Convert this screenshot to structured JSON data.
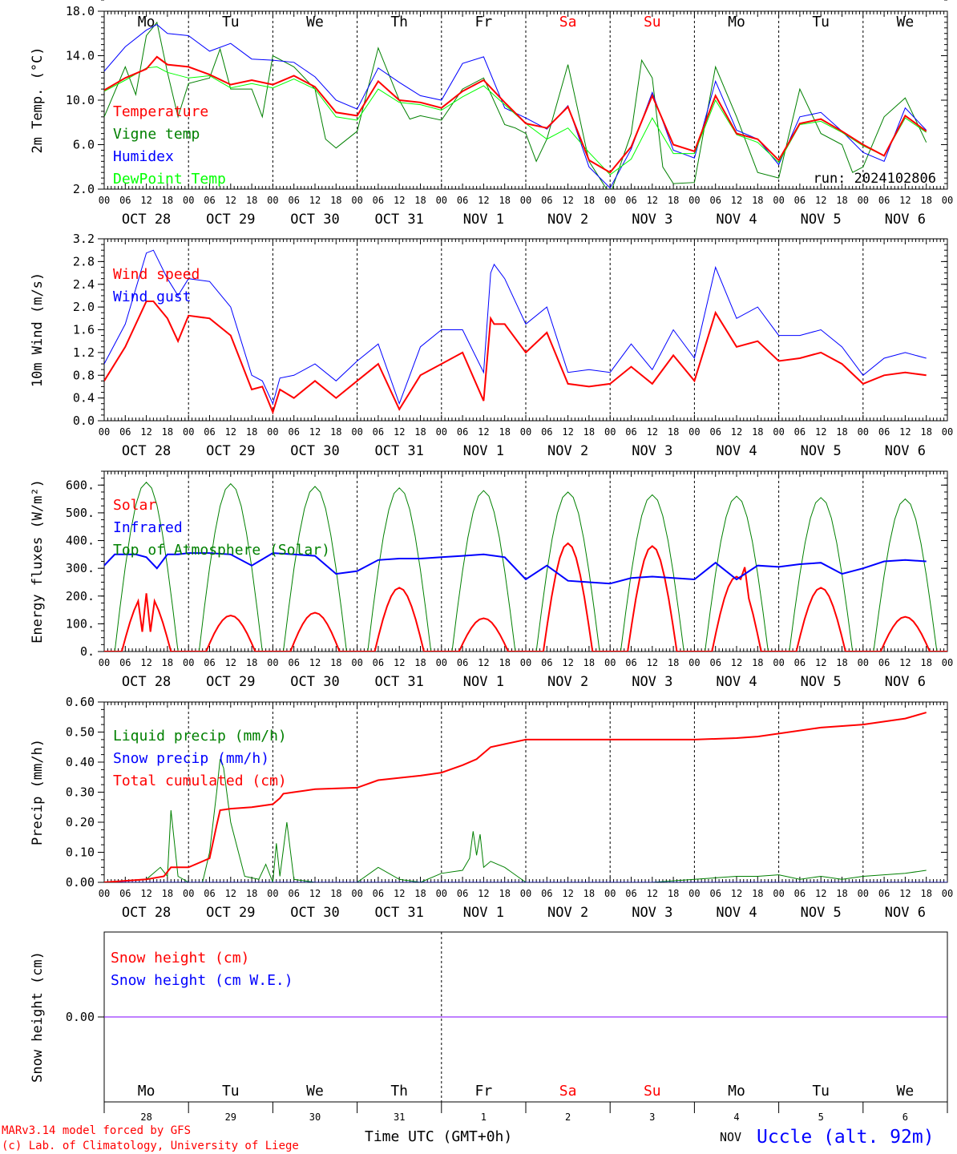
{
  "days": {
    "weekday_labels": [
      "Mo",
      "Tu",
      "We",
      "Th",
      "Fr",
      "Sa",
      "Su",
      "Mo",
      "Tu",
      "We"
    ],
    "weekday_colors": [
      "#000000",
      "#000000",
      "#000000",
      "#000000",
      "#000000",
      "#ff0000",
      "#ff0000",
      "#000000",
      "#000000",
      "#000000"
    ],
    "date_labels": [
      "OCT 28",
      "OCT 29",
      "OCT 30",
      "OCT 31",
      "NOV  1",
      "NOV  2",
      "NOV  3",
      "NOV  4",
      "NOV  5",
      "NOV  6"
    ],
    "hour_labels": [
      "00",
      "06",
      "12",
      "18"
    ],
    "hour_label_end": "00",
    "bottom_day_numbers": [
      "28",
      "29",
      "30",
      "31",
      "1",
      "2",
      "3",
      "4",
      "5",
      "6"
    ],
    "bottom_month": "NOV"
  },
  "colors": {
    "temperature": "#ff0000",
    "vigne": "#008000",
    "humidex": "#0000ff",
    "dewpoint": "#00ff00",
    "snow_line": "#7f00ff"
  },
  "footer": {
    "model_line": "MARv3.14 model forced by GFS",
    "copyright_line": "(c) Lab. of Climatology, University of Liege",
    "time_axis": "Time UTC (GMT+0h)",
    "station": "Uccle (alt. 92m)"
  },
  "chart_data": [
    {
      "type": "line",
      "ylabel": "2m Temp. (°C)",
      "ylim": [
        2.0,
        18.0
      ],
      "yticks": [
        "2.0",
        "6.0",
        "10.0",
        "14.0",
        "18.0"
      ],
      "run_label": "run: 2024102806",
      "x_unit": "hours from OCT 28 00 UTC",
      "series": [
        {
          "name": "Temperature",
          "color": "#ff0000",
          "width": 2,
          "x": [
            0,
            6,
            12,
            15,
            18,
            24,
            30,
            36,
            42,
            48,
            54,
            60,
            66,
            72,
            78,
            84,
            90,
            96,
            102,
            108,
            114,
            120,
            126,
            132,
            138,
            144,
            150,
            156,
            162,
            168,
            174,
            180,
            186,
            192,
            198,
            204,
            210,
            216,
            222,
            228,
            234
          ],
          "y": [
            10.9,
            12.0,
            12.8,
            13.9,
            13.2,
            13.0,
            12.3,
            11.4,
            11.8,
            11.4,
            12.2,
            11.2,
            8.9,
            8.6,
            11.7,
            10.0,
            9.8,
            9.3,
            10.8,
            11.8,
            9.8,
            7.9,
            7.5,
            9.4,
            4.6,
            3.5,
            5.8,
            10.4,
            6.0,
            5.4,
            10.4,
            7.0,
            6.5,
            4.6,
            7.9,
            8.3,
            7.2,
            6.0,
            5.0,
            8.6,
            7.2
          ]
        },
        {
          "name": "Vigne temp",
          "color": "#008000",
          "width": 1,
          "x": [
            0,
            6,
            9,
            12,
            15,
            18,
            21,
            24,
            30,
            33,
            36,
            42,
            45,
            48,
            54,
            60,
            63,
            66,
            72,
            78,
            84,
            87,
            90,
            96,
            102,
            108,
            114,
            117,
            120,
            123,
            126,
            132,
            138,
            144,
            150,
            153,
            156,
            159,
            162,
            168,
            174,
            180,
            186,
            192,
            198,
            204,
            210,
            213,
            216,
            222,
            228,
            234
          ],
          "y": [
            8.5,
            13.0,
            10.5,
            15.8,
            17.0,
            12.5,
            8.5,
            11.5,
            12.0,
            14.6,
            11.0,
            11.0,
            8.5,
            14.0,
            13.0,
            11.0,
            6.5,
            5.7,
            7.2,
            14.7,
            10.0,
            8.3,
            8.6,
            8.2,
            11.0,
            12.0,
            7.8,
            7.5,
            7.0,
            4.5,
            6.5,
            13.2,
            4.5,
            1.5,
            7.0,
            13.6,
            12.0,
            4.0,
            2.5,
            2.6,
            13.0,
            8.5,
            3.5,
            3.0,
            11.0,
            7.0,
            6.0,
            3.5,
            4.0,
            8.5,
            10.2,
            6.2
          ]
        },
        {
          "name": "Humidex",
          "color": "#0000ff",
          "width": 1,
          "x": [
            0,
            6,
            12,
            15,
            18,
            24,
            30,
            36,
            42,
            48,
            54,
            60,
            66,
            72,
            78,
            84,
            90,
            96,
            102,
            108,
            114,
            120,
            126,
            132,
            138,
            144,
            150,
            156,
            162,
            168,
            174,
            180,
            186,
            192,
            198,
            204,
            210,
            216,
            222,
            228,
            234
          ],
          "y": [
            12.6,
            14.8,
            16.3,
            16.8,
            16.0,
            15.8,
            14.4,
            15.1,
            13.7,
            13.6,
            13.4,
            12.1,
            10.0,
            9.2,
            12.9,
            11.6,
            10.4,
            10.0,
            13.3,
            13.9,
            9.3,
            8.4,
            7.4,
            9.5,
            4.0,
            2.1,
            5.6,
            10.7,
            5.5,
            4.8,
            11.7,
            7.3,
            6.5,
            4.2,
            8.5,
            8.9,
            7.2,
            5.3,
            4.5,
            9.3,
            7.3
          ]
        },
        {
          "name": "DewPoint Temp",
          "color": "#00ff00",
          "width": 1,
          "x": [
            0,
            6,
            12,
            15,
            18,
            24,
            30,
            36,
            42,
            48,
            54,
            60,
            66,
            72,
            78,
            84,
            90,
            96,
            102,
            108,
            114,
            120,
            126,
            132,
            138,
            144,
            150,
            156,
            162,
            168,
            174,
            180,
            186,
            192,
            198,
            204,
            210,
            216,
            222,
            228,
            234
          ],
          "y": [
            10.8,
            11.8,
            12.9,
            13.0,
            12.5,
            12.0,
            12.2,
            11.1,
            11.5,
            11.1,
            11.9,
            11.0,
            8.5,
            8.2,
            11.0,
            9.8,
            9.6,
            9.1,
            10.3,
            11.3,
            9.6,
            7.9,
            6.5,
            7.5,
            5.3,
            3.3,
            4.7,
            8.4,
            5.2,
            5.2,
            10.0,
            6.9,
            6.2,
            4.4,
            7.8,
            8.1,
            7.1,
            5.9,
            5.0,
            8.4,
            7.1
          ]
        }
      ]
    },
    {
      "type": "line",
      "ylabel": "10m Wind (m/s)",
      "ylim": [
        0.0,
        3.2
      ],
      "yticks": [
        "0.0",
        "0.4",
        "0.8",
        "1.2",
        "1.6",
        "2.0",
        "2.4",
        "2.8",
        "3.2"
      ],
      "x_unit": "hours from OCT 28 00 UTC",
      "series": [
        {
          "name": "Wind speed",
          "color": "#ff0000",
          "width": 2,
          "x": [
            0,
            6,
            12,
            14,
            18,
            21,
            24,
            30,
            36,
            42,
            45,
            48,
            50,
            54,
            60,
            66,
            72,
            78,
            84,
            90,
            96,
            102,
            108,
            110,
            111,
            114,
            120,
            126,
            132,
            138,
            144,
            150,
            156,
            162,
            168,
            174,
            180,
            186,
            192,
            198,
            204,
            210,
            216,
            222,
            228,
            234
          ],
          "y": [
            0.7,
            1.3,
            2.1,
            2.1,
            1.8,
            1.4,
            1.85,
            1.8,
            1.5,
            0.55,
            0.6,
            0.15,
            0.55,
            0.4,
            0.7,
            0.4,
            0.7,
            1.0,
            0.2,
            0.8,
            1.0,
            1.2,
            0.35,
            1.8,
            1.7,
            1.7,
            1.2,
            1.55,
            0.65,
            0.6,
            0.65,
            0.95,
            0.65,
            1.15,
            0.7,
            1.9,
            1.3,
            1.4,
            1.05,
            1.1,
            1.2,
            1.0,
            0.65,
            0.8,
            0.85,
            0.8
          ]
        },
        {
          "name": "Wind gust",
          "color": "#0000ff",
          "width": 1,
          "x": [
            0,
            6,
            12,
            14,
            18,
            21,
            24,
            30,
            36,
            42,
            45,
            48,
            50,
            54,
            60,
            66,
            72,
            78,
            84,
            90,
            96,
            102,
            108,
            110,
            111,
            114,
            120,
            126,
            132,
            138,
            144,
            150,
            156,
            162,
            168,
            174,
            180,
            186,
            192,
            198,
            204,
            210,
            216,
            222,
            228,
            234
          ],
          "y": [
            1.0,
            1.7,
            2.95,
            3.0,
            2.5,
            2.2,
            2.5,
            2.45,
            2.0,
            0.8,
            0.7,
            0.3,
            0.75,
            0.8,
            1.0,
            0.7,
            1.05,
            1.35,
            0.3,
            1.3,
            1.6,
            1.6,
            0.85,
            2.6,
            2.75,
            2.5,
            1.7,
            2.0,
            0.85,
            0.9,
            0.85,
            1.35,
            0.9,
            1.6,
            1.1,
            2.7,
            1.8,
            2.0,
            1.5,
            1.5,
            1.6,
            1.3,
            0.8,
            1.1,
            1.2,
            1.1
          ]
        }
      ]
    },
    {
      "type": "line",
      "ylabel": "Energy fluxes (W/m²)",
      "ylim": [
        0,
        650
      ],
      "yticks": [
        "0.",
        "100.",
        "200.",
        "300.",
        "400.",
        "500.",
        "600."
      ],
      "x_unit": "hours from OCT 28 00 UTC",
      "solar_peaks": [
        210,
        130,
        140,
        230,
        120,
        390,
        380,
        270,
        230,
        125
      ],
      "toa_peaks": [
        610,
        605,
        595,
        590,
        580,
        575,
        565,
        560,
        555,
        550
      ],
      "series": [
        {
          "name": "Solar",
          "color": "#ff0000",
          "width": 2
        },
        {
          "name": "Infrared",
          "color": "#0000ff",
          "width": 2,
          "x": [
            0,
            3,
            9,
            12,
            15,
            18,
            21,
            24,
            30,
            36,
            42,
            48,
            54,
            60,
            66,
            72,
            78,
            84,
            90,
            96,
            102,
            108,
            114,
            117,
            120,
            126,
            132,
            138,
            144,
            150,
            156,
            162,
            168,
            174,
            180,
            186,
            192,
            198,
            204,
            210,
            216,
            222,
            228,
            234
          ],
          "y": [
            310,
            350,
            350,
            340,
            300,
            350,
            350,
            355,
            355,
            350,
            310,
            355,
            350,
            345,
            280,
            290,
            330,
            335,
            335,
            340,
            345,
            350,
            340,
            300,
            260,
            310,
            255,
            250,
            245,
            265,
            270,
            265,
            260,
            320,
            260,
            310,
            305,
            315,
            320,
            280,
            300,
            325,
            330,
            325
          ]
        },
        {
          "name": "Top of Atmosphere (Solar)",
          "color": "#008000",
          "width": 1
        }
      ]
    },
    {
      "type": "line",
      "ylabel": "Precip (mm/h)",
      "ylim": [
        0.0,
        0.6
      ],
      "yticks": [
        "0.00",
        "0.10",
        "0.20",
        "0.30",
        "0.40",
        "0.50",
        "0.60"
      ],
      "x_unit": "hours from OCT 28 00 UTC",
      "series": [
        {
          "name": "Liquid precip (mm/h)",
          "color": "#008000",
          "width": 1,
          "x": [
            0,
            12,
            16,
            18,
            19,
            21,
            24,
            28,
            30,
            32,
            33,
            34,
            36,
            40,
            44,
            46,
            48,
            49,
            50,
            52,
            54,
            60,
            72,
            78,
            84,
            90,
            96,
            102,
            104,
            105,
            106,
            107,
            108,
            110,
            114,
            120,
            132,
            144,
            156,
            168,
            180,
            186,
            192,
            198,
            204,
            210,
            216,
            222,
            228,
            234
          ],
          "y": [
            0.0,
            0.01,
            0.05,
            0.02,
            0.24,
            0.02,
            0.0,
            0.0,
            0.1,
            0.3,
            0.41,
            0.38,
            0.2,
            0.02,
            0.01,
            0.06,
            0.0,
            0.13,
            0.02,
            0.2,
            0.01,
            0.0,
            0.0,
            0.05,
            0.01,
            0.0,
            0.03,
            0.04,
            0.08,
            0.17,
            0.09,
            0.16,
            0.05,
            0.07,
            0.05,
            0.0,
            0.0,
            0.0,
            0.0,
            0.01,
            0.02,
            0.02,
            0.025,
            0.01,
            0.02,
            0.01,
            0.02,
            0.025,
            0.03,
            0.04
          ]
        },
        {
          "name": "Snow precip (mm/h)",
          "color": "#0000ff",
          "width": 1,
          "x": [
            0,
            240
          ],
          "y": [
            0,
            0
          ]
        },
        {
          "name": "Total cumulated (cm)",
          "color": "#ff0000",
          "width": 2,
          "x": [
            0,
            12,
            17,
            19,
            24,
            30,
            32,
            33,
            36,
            42,
            48,
            50,
            51,
            54,
            60,
            72,
            78,
            90,
            96,
            102,
            106,
            108,
            110,
            114,
            120,
            132,
            144,
            168,
            180,
            186,
            204,
            210,
            216,
            222,
            228,
            234
          ],
          "y": [
            0.0,
            0.01,
            0.02,
            0.05,
            0.05,
            0.08,
            0.19,
            0.24,
            0.245,
            0.25,
            0.26,
            0.28,
            0.295,
            0.3,
            0.31,
            0.315,
            0.34,
            0.355,
            0.365,
            0.39,
            0.41,
            0.43,
            0.45,
            0.46,
            0.475,
            0.475,
            0.475,
            0.475,
            0.48,
            0.485,
            0.515,
            0.52,
            0.525,
            0.535,
            0.545,
            0.565
          ]
        }
      ]
    },
    {
      "type": "line",
      "ylabel": "Snow height (cm)",
      "ylim": [
        -1,
        1
      ],
      "yticks": [
        "0.00"
      ],
      "x_unit": "hours from OCT 28 00 UTC",
      "series": [
        {
          "name": "Snow height (cm)",
          "color": "#ff0000",
          "width": 1,
          "x": [
            0,
            240
          ],
          "y": [
            0,
            0
          ]
        },
        {
          "name": "Snow height (cm W.E.)",
          "color": "#0000ff",
          "width": 1,
          "x": [
            0,
            240
          ],
          "y": [
            0,
            0
          ]
        }
      ]
    }
  ]
}
